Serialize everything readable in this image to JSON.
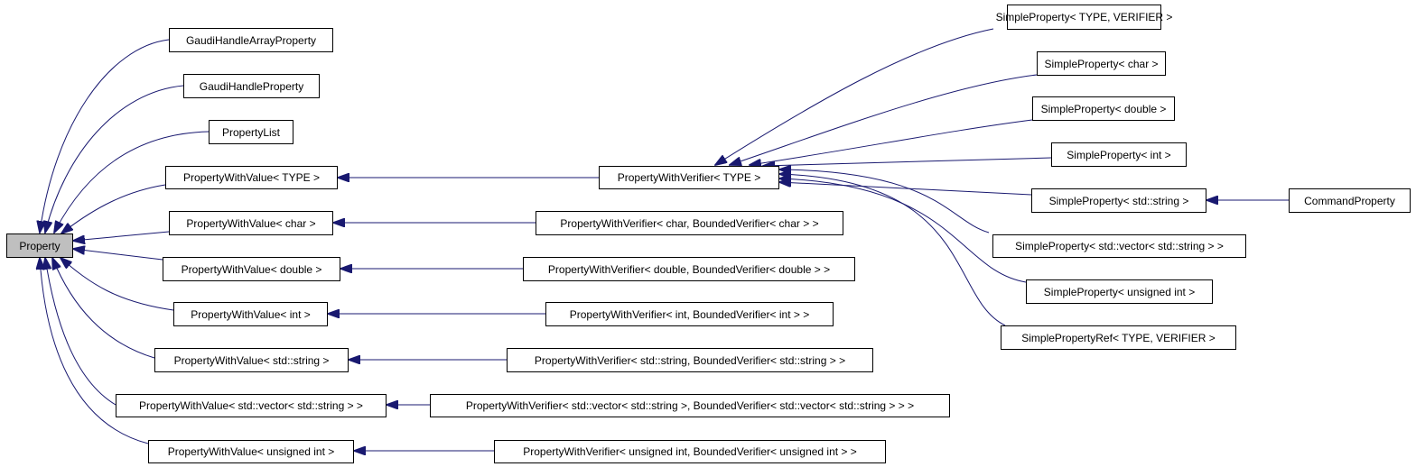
{
  "colors": {
    "edge": "#191970",
    "root_fill": "#bfbfbf",
    "node_fill": "#ffffff",
    "border": "#000000"
  },
  "nodes": {
    "property": "Property",
    "gaudi_handle_array_property": "GaudiHandleArrayProperty",
    "gaudi_handle_property": "GaudiHandleProperty",
    "property_list": "PropertyList",
    "pwv_type": "PropertyWithValue< TYPE >",
    "pwv_char": "PropertyWithValue< char >",
    "pwv_double": "PropertyWithValue< double >",
    "pwv_int": "PropertyWithValue< int >",
    "pwv_string": "PropertyWithValue< std::string >",
    "pwv_vector": "PropertyWithValue< std::vector< std::string > >",
    "pwv_uint": "PropertyWithValue< unsigned int >",
    "pwver_type": "PropertyWithVerifier< TYPE >",
    "pwver_char": "PropertyWithVerifier< char, BoundedVerifier< char > >",
    "pwver_double": "PropertyWithVerifier< double, BoundedVerifier< double > >",
    "pwver_int": "PropertyWithVerifier< int, BoundedVerifier< int > >",
    "pwver_string": "PropertyWithVerifier< std::string, BoundedVerifier< std::string > >",
    "pwver_vector": "PropertyWithVerifier< std::vector< std::string >, BoundedVerifier< std::vector< std::string > > >",
    "pwver_uint": "PropertyWithVerifier< unsigned int, BoundedVerifier< unsigned int > >",
    "sp_type_verifier": "SimpleProperty< TYPE, VERIFIER >",
    "sp_char": "SimpleProperty< char >",
    "sp_double": "SimpleProperty< double >",
    "sp_int": "SimpleProperty< int >",
    "sp_string": "SimpleProperty< std::string >",
    "sp_vector": "SimpleProperty< std::vector< std::string > >",
    "sp_uint": "SimpleProperty< unsigned int >",
    "spref": "SimplePropertyRef< TYPE, VERIFIER >",
    "command_property": "CommandProperty"
  }
}
